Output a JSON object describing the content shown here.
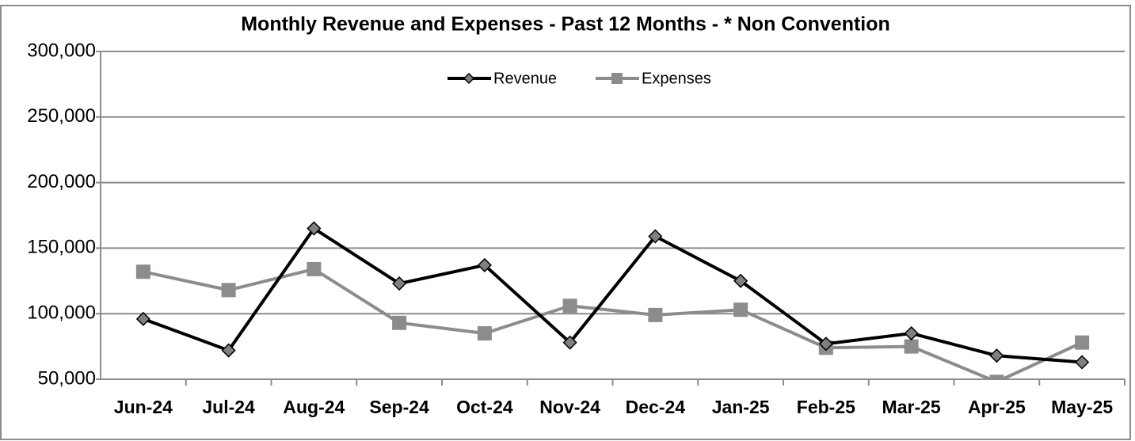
{
  "chart_data": {
    "type": "line",
    "title": "Monthly Revenue and Expenses - Past 12 Months - * Non Convention",
    "categories": [
      "Jun-24",
      "Jul-24",
      "Aug-24",
      "Sep-24",
      "Oct-24",
      "Nov-24",
      "Dec-24",
      "Jan-25",
      "Feb-25",
      "Mar-25",
      "Apr-25",
      "May-25"
    ],
    "series": [
      {
        "name": "Revenue",
        "color": "#000000",
        "marker": "diamond",
        "values": [
          96000,
          72000,
          165000,
          123000,
          137000,
          78000,
          159000,
          125000,
          77000,
          85000,
          68000,
          63000
        ]
      },
      {
        "name": "Expenses",
        "color": "#8c8c8c",
        "marker": "square",
        "values": [
          132000,
          118000,
          134000,
          93000,
          85000,
          106000,
          99000,
          103000,
          74000,
          75000,
          48000,
          78000
        ]
      }
    ],
    "ylim": [
      50000,
      300000
    ],
    "yticks": [
      {
        "value": 50000,
        "label": "50,000"
      },
      {
        "value": 100000,
        "label": "100,000"
      },
      {
        "value": 150000,
        "label": "150,000"
      },
      {
        "value": 200000,
        "label": "200,000"
      },
      {
        "value": 250000,
        "label": "250,000"
      },
      {
        "value": 300000,
        "label": "300,000"
      }
    ],
    "grid": true,
    "legend": "top"
  }
}
